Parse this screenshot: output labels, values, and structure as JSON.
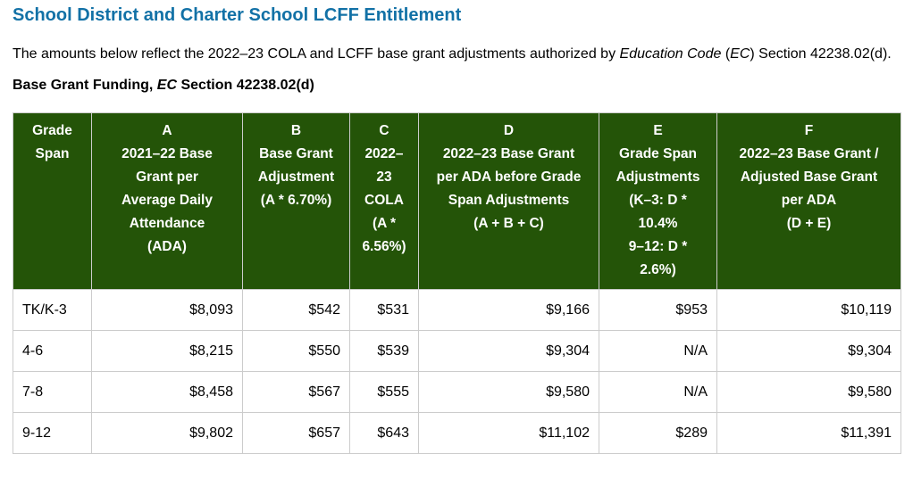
{
  "page": {
    "title": "School District and Charter School LCFF Entitlement",
    "intro": {
      "pre": "The amounts below reflect the 2022–23 COLA and LCFF base grant adjustments authorized by ",
      "italic_1": "Education Code",
      "mid": " (",
      "italic_2": "EC",
      "post": ") Section 42238.02(d)."
    },
    "subheading": {
      "pre": "Base Grant Funding, ",
      "italic": "EC",
      "post": " Section 42238.02(d)"
    }
  },
  "colors": {
    "header_green": "#245408",
    "title_blue": "#1271a6",
    "border_gray": "#cccccc"
  },
  "table": {
    "headers": [
      "Grade\nSpan",
      "A\n2021–22 Base\nGrant per\nAverage Daily\nAttendance\n(ADA)",
      "B\nBase Grant\nAdjustment\n(A * 6.70%)",
      "C\n2022–\n23\nCOLA\n(A *\n6.56%)",
      "D\n2022–23 Base Grant\nper ADA before Grade\nSpan Adjustments\n(A + B + C)",
      "E\nGrade Span\nAdjustments\n(K–3: D *\n10.4%\n9–12: D *\n2.6%)",
      "F\n2022–23 Base Grant /\nAdjusted Base Grant\nper ADA\n(D + E)"
    ],
    "rows": [
      [
        "TK/K-3",
        "$8,093",
        "$542",
        "$531",
        "$9,166",
        "$953",
        "$10,119"
      ],
      [
        "4-6",
        "$8,215",
        "$550",
        "$539",
        "$9,304",
        "N/A",
        "$9,304"
      ],
      [
        "7-8",
        "$8,458",
        "$567",
        "$555",
        "$9,580",
        "N/A",
        "$9,580"
      ],
      [
        "9-12",
        "$9,802",
        "$657",
        "$643",
        "$11,102",
        "$289",
        "$11,391"
      ]
    ]
  }
}
